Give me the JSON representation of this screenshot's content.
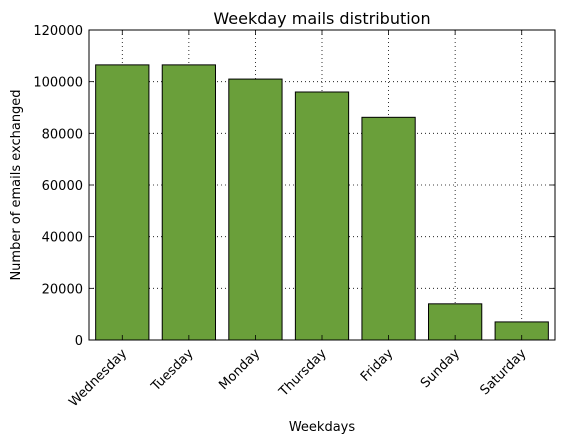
{
  "chart_data": {
    "type": "bar",
    "title": "Weekday mails distribution",
    "xlabel": "Weekdays",
    "ylabel": "Number of emails exchanged",
    "categories": [
      "Wednesday",
      "Tuesday",
      "Monday",
      "Thursday",
      "Friday",
      "Sunday",
      "Saturday"
    ],
    "values": [
      106500,
      106500,
      101000,
      96000,
      86200,
      14000,
      7000
    ],
    "ylim": [
      0,
      120000
    ],
    "yticks": [
      0,
      20000,
      40000,
      60000,
      80000,
      100000,
      120000
    ],
    "ytick_labels": [
      "0",
      "20000",
      "40000",
      "60000",
      "80000",
      "100000",
      "120000"
    ],
    "grid": true,
    "bar_color": "#6a9f3a",
    "edge_color": "#000000"
  }
}
